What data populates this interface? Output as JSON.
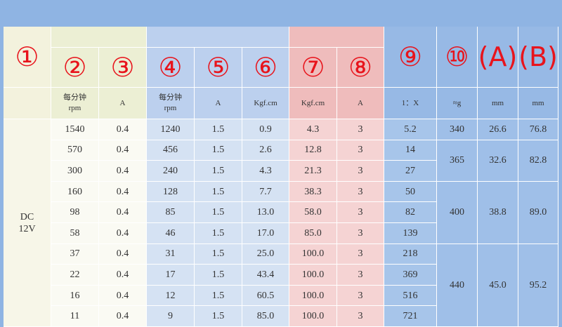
{
  "header": {
    "labels": [
      "①",
      "②",
      "③",
      "④",
      "⑤",
      "⑥",
      "⑦",
      "⑧",
      "⑨",
      "⑩",
      "(A)",
      "(B)"
    ],
    "units": [
      "每分钟\nrpm",
      "A",
      "每分钟\nrpm",
      "A",
      "Kgf.cm",
      "Kgf.cm",
      "A",
      "1：X",
      "≈g",
      "mm",
      "mm"
    ]
  },
  "voltage": "DC\n12V",
  "rows": [
    [
      "1540",
      "0.4",
      "1240",
      "1.5",
      "0.9",
      "4.3",
      "3",
      "5.2"
    ],
    [
      "570",
      "0.4",
      "456",
      "1.5",
      "2.6",
      "12.8",
      "3",
      "14"
    ],
    [
      "300",
      "0.4",
      "240",
      "1.5",
      "4.3",
      "21.3",
      "3",
      "27"
    ],
    [
      "160",
      "0.4",
      "128",
      "1.5",
      "7.7",
      "38.3",
      "3",
      "50"
    ],
    [
      "98",
      "0.4",
      "85",
      "1.5",
      "13.0",
      "58.0",
      "3",
      "82"
    ],
    [
      "58",
      "0.4",
      "46",
      "1.5",
      "17.0",
      "85.0",
      "3",
      "139"
    ],
    [
      "37",
      "0.4",
      "31",
      "1.5",
      "25.0",
      "100.0",
      "3",
      "218"
    ],
    [
      "22",
      "0.4",
      "17",
      "1.5",
      "43.4",
      "100.0",
      "3",
      "369"
    ],
    [
      "16",
      "0.4",
      "12",
      "1.5",
      "60.5",
      "100.0",
      "3",
      "516"
    ],
    [
      "11",
      "0.4",
      "9",
      "1.5",
      "85.0",
      "100.0",
      "3",
      "721"
    ]
  ],
  "groups": [
    [
      "340",
      "26.6",
      "76.8"
    ],
    [
      "365",
      "32.6",
      "82.8"
    ],
    [
      "400",
      "38.8",
      "89.0"
    ],
    [
      "440",
      "45.0",
      "95.2"
    ]
  ]
}
